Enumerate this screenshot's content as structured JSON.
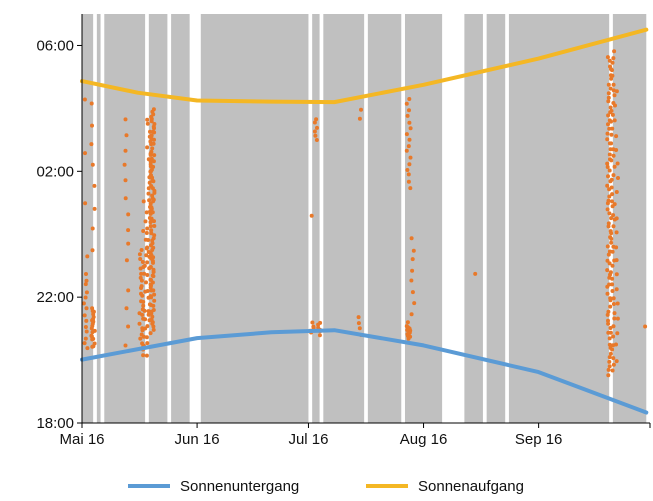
{
  "chart_data": {
    "type": "scatter",
    "title": "",
    "xlabel": "",
    "ylabel": "",
    "grid": false,
    "legend_position": "bottom",
    "colors": {
      "shade": "#c0c0c0",
      "points": "#e8792a",
      "sunset": "#5b9bd5",
      "sunrise": "#f4b724",
      "axis": "#000000"
    },
    "x_axis": {
      "range": [
        "2016-05-01",
        "2016-10-01"
      ],
      "ticks": [
        {
          "date": "2016-05-01",
          "label": "Mai 16"
        },
        {
          "date": "2016-06-01",
          "label": "Jun 16"
        },
        {
          "date": "2016-07-01",
          "label": "Jul 16"
        },
        {
          "date": "2016-08-01",
          "label": "Aug 16"
        },
        {
          "date": "2016-09-01",
          "label": "Sep 16"
        }
      ]
    },
    "y_axis": {
      "range": [
        "18:00",
        "07:00 (next day)"
      ],
      "ticks": [
        "18:00",
        "22:00",
        "02:00",
        "06:00"
      ]
    },
    "shaded_periods": [
      [
        "2016-05-01",
        "2016-05-04"
      ],
      [
        "2016-05-05",
        "2016-05-06"
      ],
      [
        "2016-05-07",
        "2016-05-18"
      ],
      [
        "2016-05-19",
        "2016-05-24"
      ],
      [
        "2016-05-25",
        "2016-05-30"
      ],
      [
        "2016-06-02",
        "2016-07-01"
      ],
      [
        "2016-07-02",
        "2016-07-04"
      ],
      [
        "2016-07-05",
        "2016-07-16"
      ],
      [
        "2016-07-17",
        "2016-07-26"
      ],
      [
        "2016-07-27",
        "2016-08-06"
      ],
      [
        "2016-08-12",
        "2016-08-17"
      ],
      [
        "2016-08-18",
        "2016-08-23"
      ],
      [
        "2016-08-24",
        "2016-09-20"
      ],
      [
        "2016-09-21",
        "2016-09-30"
      ]
    ],
    "series": [
      {
        "name": "Sonnenuntergang",
        "type": "line",
        "color": "#5b9bd5",
        "points": [
          {
            "date": "2016-05-01",
            "time": "20:01"
          },
          {
            "date": "2016-06-01",
            "time": "20:42"
          },
          {
            "date": "2016-06-21",
            "time": "20:53"
          },
          {
            "date": "2016-07-08",
            "time": "20:57"
          },
          {
            "date": "2016-08-01",
            "time": "20:28"
          },
          {
            "date": "2016-09-01",
            "time": "19:37"
          },
          {
            "date": "2016-09-30",
            "time": "18:20"
          }
        ]
      },
      {
        "name": "Sonnenaufgang",
        "type": "line",
        "color": "#f4b724",
        "points": [
          {
            "date": "2016-05-01",
            "time": "04:52"
          },
          {
            "date": "2016-05-16",
            "time": "04:30"
          },
          {
            "date": "2016-06-01",
            "time": "04:15"
          },
          {
            "date": "2016-06-21",
            "time": "04:13"
          },
          {
            "date": "2016-07-08",
            "time": "04:12"
          },
          {
            "date": "2016-08-01",
            "time": "04:45"
          },
          {
            "date": "2016-09-01",
            "time": "05:35"
          },
          {
            "date": "2016-09-30",
            "time": "06:30"
          }
        ]
      }
    ],
    "activity_clusters": [
      {
        "date": "2016-05-02",
        "from": "20:20",
        "to": "22:45",
        "n": 14
      },
      {
        "date": "2016-05-02",
        "from": "23:20",
        "to": "04:15",
        "n": 4
      },
      {
        "date": "2016-05-04",
        "from": "20:25",
        "to": "21:40",
        "n": 20
      },
      {
        "date": "2016-05-04",
        "from": "23:30",
        "to": "04:10",
        "n": 8
      },
      {
        "date": "2016-05-13",
        "from": "23:10",
        "to": "03:40",
        "n": 10
      },
      {
        "date": "2016-05-13",
        "from": "20:30",
        "to": "22:10",
        "n": 4
      },
      {
        "date": "2016-05-17",
        "from": "20:10",
        "to": "23:30",
        "n": 28
      },
      {
        "date": "2016-05-18",
        "from": "20:10",
        "to": "01:00",
        "n": 18
      },
      {
        "date": "2016-05-19",
        "from": "20:30",
        "to": "03:40",
        "n": 40
      },
      {
        "date": "2016-05-20",
        "from": "21:00",
        "to": "04:00",
        "n": 90
      },
      {
        "date": "2016-07-02",
        "from": "20:50",
        "to": "21:10",
        "n": 6
      },
      {
        "date": "2016-07-02",
        "from": "00:30",
        "to": "00:40",
        "n": 1
      },
      {
        "date": "2016-07-03",
        "from": "03:00",
        "to": "03:40",
        "n": 6
      },
      {
        "date": "2016-07-04",
        "from": "20:50",
        "to": "21:10",
        "n": 6
      },
      {
        "date": "2016-07-15",
        "from": "20:50",
        "to": "21:20",
        "n": 4
      },
      {
        "date": "2016-07-15",
        "from": "03:40",
        "to": "03:55",
        "n": 2
      },
      {
        "date": "2016-07-28",
        "from": "20:40",
        "to": "21:10",
        "n": 14
      },
      {
        "date": "2016-07-28",
        "from": "01:30",
        "to": "04:20",
        "n": 16
      },
      {
        "date": "2016-07-29",
        "from": "21:30",
        "to": "23:50",
        "n": 8
      },
      {
        "date": "2016-08-15",
        "from": "22:40",
        "to": "22:50",
        "n": 1
      },
      {
        "date": "2016-09-20",
        "from": "19:30",
        "to": "05:40",
        "n": 70
      },
      {
        "date": "2016-09-21",
        "from": "19:40",
        "to": "05:50",
        "n": 50
      },
      {
        "date": "2016-09-22",
        "from": "20:00",
        "to": "04:30",
        "n": 20
      },
      {
        "date": "2016-09-30",
        "from": "21:00",
        "to": "21:10",
        "n": 1
      }
    ]
  }
}
